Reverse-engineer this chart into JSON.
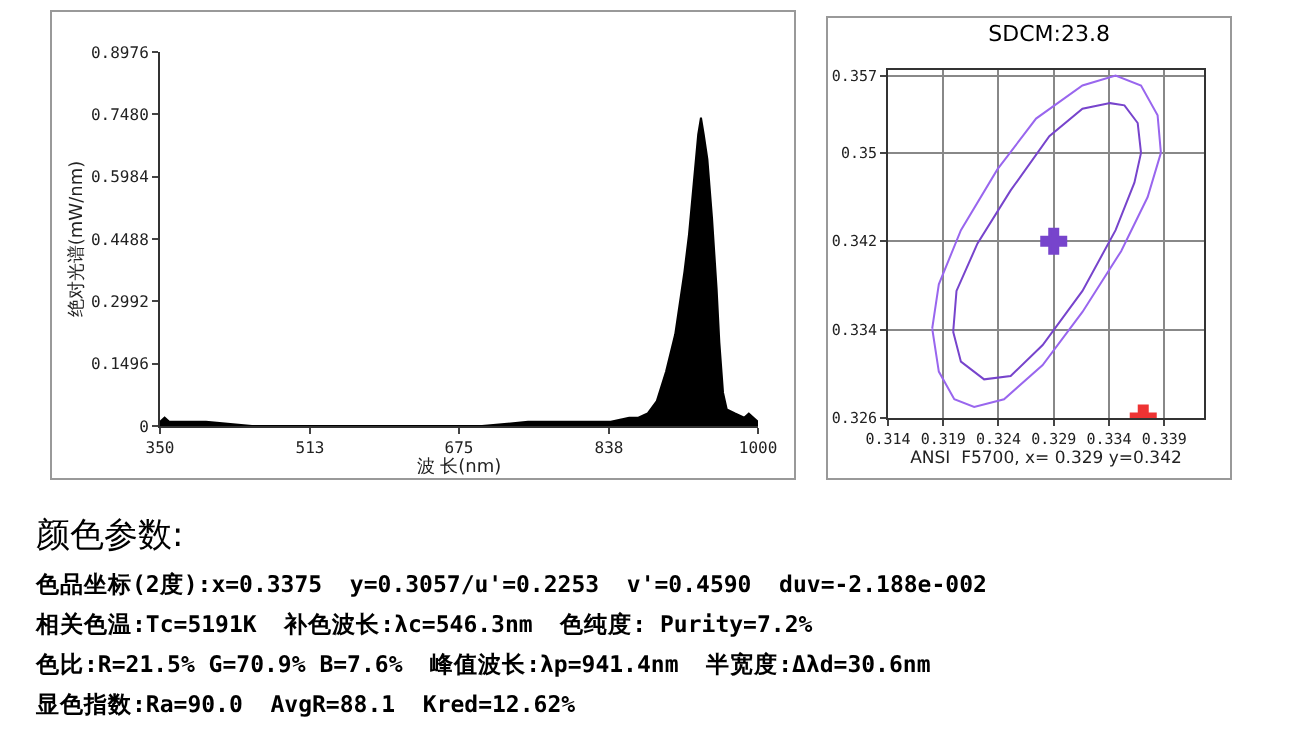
{
  "chart_data": [
    {
      "type": "area",
      "xlabel": "波 长(nm)",
      "ylabel": "绝对光谱(mW/nm)",
      "color": "#000000",
      "x": [
        350,
        355,
        360,
        400,
        450,
        500,
        600,
        700,
        750,
        800,
        840,
        860,
        870,
        880,
        890,
        900,
        910,
        920,
        925,
        930,
        935,
        938,
        941,
        945,
        950,
        955,
        958,
        962,
        966,
        975,
        985,
        990,
        995,
        1000
      ],
      "values": [
        0.01,
        0.02,
        0.01,
        0.01,
        0,
        0,
        0,
        0,
        0.01,
        0.01,
        0.01,
        0.02,
        0.02,
        0.03,
        0.06,
        0.13,
        0.22,
        0.37,
        0.46,
        0.58,
        0.7,
        0.74,
        0.7,
        0.64,
        0.5,
        0.33,
        0.2,
        0.08,
        0.04,
        0.03,
        0.02,
        0.03,
        0.02,
        0.01
      ],
      "xlim": [
        350,
        1000
      ],
      "xticks": [
        350,
        513,
        675,
        838,
        1000
      ],
      "ylim": [
        0,
        0.8976
      ],
      "yticks": [
        0,
        0.1496,
        0.2992,
        0.4488,
        0.5984,
        {
          "value": 0.748,
          "label": "0.7480"
        },
        0.8976
      ],
      "grid": false
    },
    {
      "type": "line",
      "title": "SDCM:23.8",
      "xlabel": "ANSI  F5700, x= 0.329 y=0.342",
      "xlim": [
        0.314,
        0.3426
      ],
      "xticks": [
        0.314,
        0.319,
        0.324,
        0.329,
        0.334,
        0.339
      ],
      "ylim": [
        0.326,
        0.3575
      ],
      "yticks": [
        0.326,
        0.334,
        0.342,
        0.35,
        0.357
      ],
      "grid": true,
      "series": [
        {
          "type": "line",
          "color": "#9966ee",
          "x": [
            0.318,
            0.3186,
            0.3206,
            0.3239,
            0.3274,
            0.3316,
            0.3346,
            0.3369,
            0.3384,
            0.3387,
            null,
            0.318,
            0.3186,
            0.32,
            0.3218,
            0.3245,
            0.328,
            0.3316,
            0.3351,
            0.3375,
            0.3387
          ],
          "values": [
            0.3341,
            0.3381,
            0.343,
            0.3485,
            0.3531,
            0.3561,
            0.357,
            0.3561,
            0.3534,
            0.35,
            null,
            0.3341,
            0.3302,
            0.3277,
            0.327,
            0.3277,
            0.3308,
            0.3356,
            0.3411,
            0.346,
            0.35
          ]
        },
        {
          "type": "line",
          "color": "#7744cc",
          "x": [
            0.3199,
            0.3202,
            0.3221,
            0.3251,
            0.3286,
            0.3316,
            0.3341,
            0.3354,
            0.3366,
            0.3369,
            null,
            0.3199,
            0.3206,
            0.3227,
            0.3251,
            0.328,
            0.3316,
            0.3346,
            0.3363,
            0.3369
          ],
          "values": [
            0.3338,
            0.3375,
            0.3418,
            0.3466,
            0.3515,
            0.354,
            0.3545,
            0.3543,
            0.3527,
            0.35,
            null,
            0.3338,
            0.3311,
            0.3295,
            0.3298,
            0.3326,
            0.3375,
            0.343,
            0.3473,
            0.35
          ]
        },
        {
          "type": "scatter",
          "marker": "cross",
          "color": "#7744cc",
          "x": [
            0.329
          ],
          "values": [
            0.342
          ]
        },
        {
          "type": "scatter",
          "marker": "cross",
          "color": "#ee3333",
          "x": [
            0.3371
          ],
          "values": [
            0.326
          ]
        }
      ]
    },
    {
      "type": "other",
      "title": "颜色参数:",
      "annotations": [
        "色品坐标(2度):x=0.3375  y=0.3057/u'=0.2253  v'=0.4590  duv=-2.188e-002",
        "相关色温:Tc=5191K  补色波长:λc=546.3nm  色纯度: Purity=7.2%",
        "色比:R=21.5% G=70.9% B=7.6%  峰值波长:λp=941.4nm  半宽度:Δλd=30.6nm",
        "显色指数:Ra=90.0  AvgR=88.1  Kred=12.62%"
      ]
    }
  ]
}
